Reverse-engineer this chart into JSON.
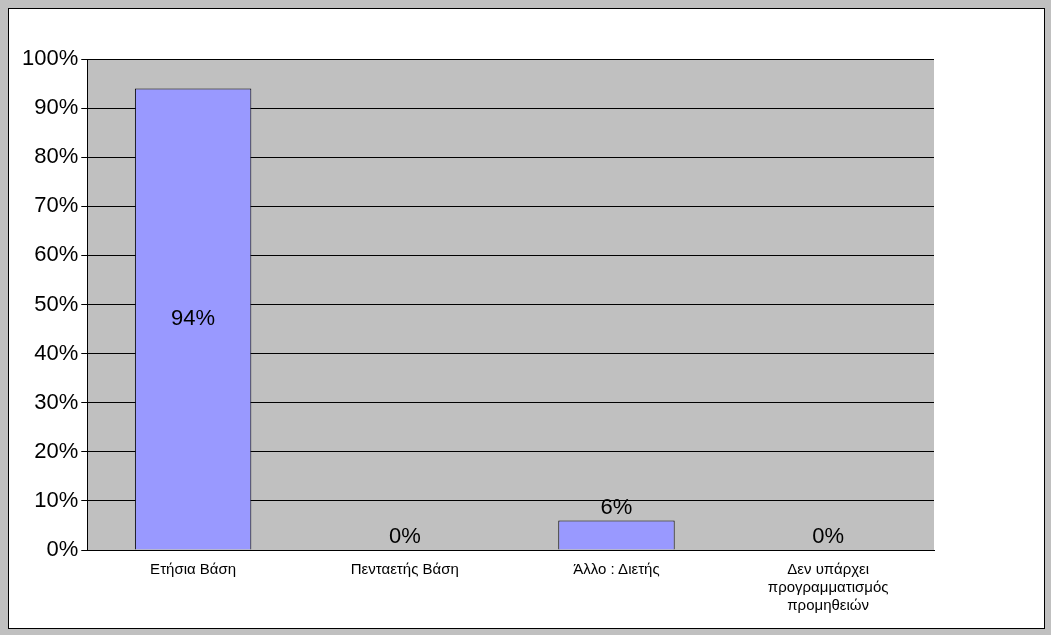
{
  "chart_data": {
    "type": "bar",
    "categories": [
      "Ετήσια Βάση",
      "Πενταετής Βάση",
      "Άλλο : Διετής",
      "Δεν υπάρχει προγραμματισμός προμηθειών"
    ],
    "values": [
      94,
      0,
      6,
      0
    ],
    "value_labels": [
      "94%",
      "0%",
      "6%",
      "0%"
    ],
    "color": "#9999ff",
    "ylim": [
      0,
      100
    ],
    "yticks": [
      {
        "value": 0,
        "label": "0%"
      },
      {
        "value": 10,
        "label": "10%"
      },
      {
        "value": 20,
        "label": "20%"
      },
      {
        "value": 30,
        "label": "30%"
      },
      {
        "value": 40,
        "label": "40%"
      },
      {
        "value": 50,
        "label": "50%"
      },
      {
        "value": 60,
        "label": "60%"
      },
      {
        "value": 70,
        "label": "70%"
      },
      {
        "value": 80,
        "label": "80%"
      },
      {
        "value": 90,
        "label": "90%"
      },
      {
        "value": 100,
        "label": "100%"
      }
    ],
    "grid": "y"
  }
}
